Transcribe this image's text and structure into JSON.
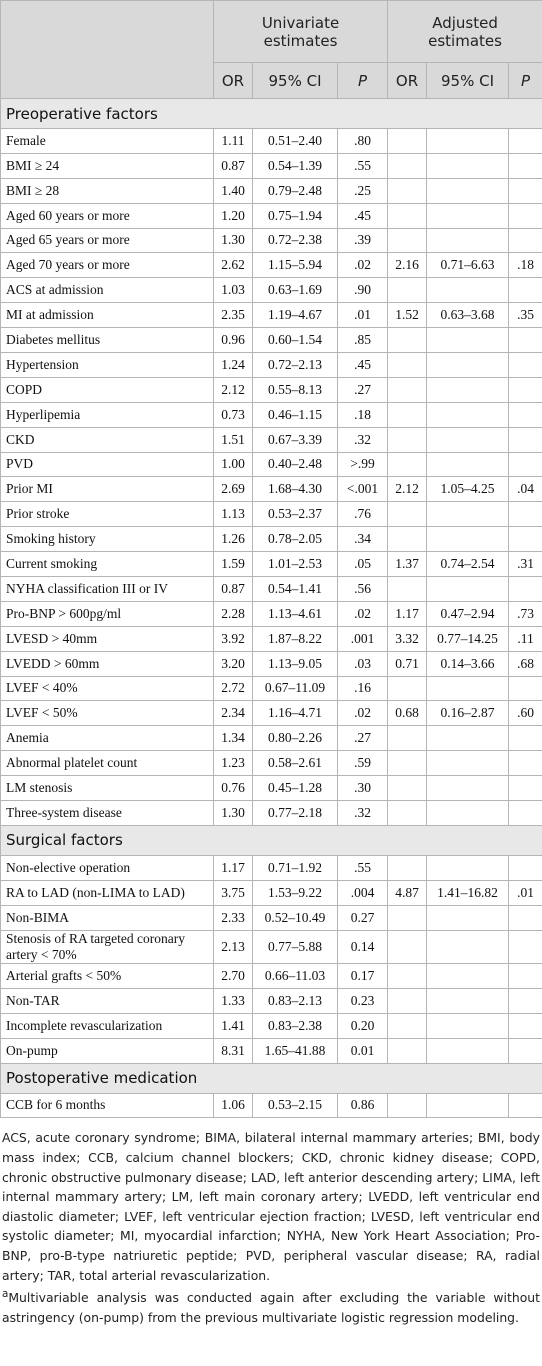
{
  "header": {
    "groups": [
      "Univariate estimates",
      "Adjusted estimates"
    ],
    "columns": [
      "OR",
      "95% CI",
      "P",
      "OR",
      "95% CI",
      "P"
    ]
  },
  "sections": [
    {
      "title": "Preoperative factors",
      "rows": [
        {
          "label": "Female",
          "univariate": [
            "1.11",
            "0.51–2.40",
            ".80"
          ]
        },
        {
          "label": "BMI ≥ 24",
          "univariate": [
            "0.87",
            "0.54–1.39",
            ".55"
          ]
        },
        {
          "label": "BMI ≥ 28",
          "univariate": [
            "1.40",
            "0.79–2.48",
            ".25"
          ]
        },
        {
          "label": "Aged 60 years or more",
          "univariate": [
            "1.20",
            "0.75–1.94",
            ".45"
          ]
        },
        {
          "label": "Aged 65 years or more",
          "univariate": [
            "1.30",
            "0.72–2.38",
            ".39"
          ]
        },
        {
          "label": "Aged 70 years or more",
          "univariate": [
            "2.62",
            "1.15–5.94",
            ".02"
          ],
          "adjusted": [
            "2.16",
            "0.71–6.63",
            ".18"
          ]
        },
        {
          "label": "ACS at admission",
          "univariate": [
            "1.03",
            "0.63–1.69",
            ".90"
          ]
        },
        {
          "label": "MI at admission",
          "univariate": [
            "2.35",
            "1.19–4.67",
            ".01"
          ],
          "adjusted": [
            "1.52",
            "0.63–3.68",
            ".35"
          ]
        },
        {
          "label": "Diabetes mellitus",
          "univariate": [
            "0.96",
            "0.60–1.54",
            ".85"
          ]
        },
        {
          "label": "Hypertension",
          "univariate": [
            "1.24",
            "0.72–2.13",
            ".45"
          ]
        },
        {
          "label": "COPD",
          "univariate": [
            "2.12",
            "0.55–8.13",
            ".27"
          ]
        },
        {
          "label": "Hyperlipemia",
          "univariate": [
            "0.73",
            "0.46–1.15",
            ".18"
          ]
        },
        {
          "label": "CKD",
          "univariate": [
            "1.51",
            "0.67–3.39",
            ".32"
          ]
        },
        {
          "label": "PVD",
          "univariate": [
            "1.00",
            "0.40–2.48",
            ">.99"
          ]
        },
        {
          "label": "Prior MI",
          "univariate": [
            "2.69",
            "1.68–4.30",
            "<.001"
          ],
          "adjusted": [
            "2.12",
            "1.05–4.25",
            ".04"
          ]
        },
        {
          "label": "Prior stroke",
          "univariate": [
            "1.13",
            "0.53–2.37",
            ".76"
          ]
        },
        {
          "label": "Smoking history",
          "univariate": [
            "1.26",
            "0.78–2.05",
            ".34"
          ]
        },
        {
          "label": "Current smoking",
          "univariate": [
            "1.59",
            "1.01–2.53",
            ".05"
          ],
          "adjusted": [
            "1.37",
            "0.74–2.54",
            ".31"
          ]
        },
        {
          "label": "NYHA classification III or IV",
          "univariate": [
            "0.87",
            "0.54–1.41",
            ".56"
          ]
        },
        {
          "label": "Pro-BNP > 600pg/ml",
          "univariate": [
            "2.28",
            "1.13–4.61",
            ".02"
          ],
          "adjusted": [
            "1.17",
            "0.47–2.94",
            ".73"
          ]
        },
        {
          "label": "LVESD > 40mm",
          "univariate": [
            "3.92",
            "1.87–8.22",
            ".001"
          ],
          "adjusted": [
            "3.32",
            "0.77–14.25",
            ".11"
          ]
        },
        {
          "label": "LVEDD > 60mm",
          "univariate": [
            "3.20",
            "1.13–9.05",
            ".03"
          ],
          "adjusted": [
            "0.71",
            "0.14–3.66",
            ".68"
          ]
        },
        {
          "label": "LVEF < 40%",
          "univariate": [
            "2.72",
            "0.67–11.09",
            ".16"
          ]
        },
        {
          "label": "LVEF < 50%",
          "univariate": [
            "2.34",
            "1.16–4.71",
            ".02"
          ],
          "adjusted": [
            "0.68",
            "0.16–2.87",
            ".60"
          ]
        },
        {
          "label": "Anemia",
          "univariate": [
            "1.34",
            "0.80–2.26",
            ".27"
          ]
        },
        {
          "label": "Abnormal platelet count",
          "univariate": [
            "1.23",
            "0.58–2.61",
            ".59"
          ]
        },
        {
          "label": "LM stenosis",
          "univariate": [
            "0.76",
            "0.45–1.28",
            ".30"
          ]
        },
        {
          "label": "Three-system disease",
          "univariate": [
            "1.30",
            "0.77–2.18",
            ".32"
          ]
        }
      ]
    },
    {
      "title": "Surgical factors",
      "rows": [
        {
          "label": "Non-elective operation",
          "univariate": [
            "1.17",
            "0.71–1.92",
            ".55"
          ]
        },
        {
          "label": "RA to LAD (non-LIMA to LAD)",
          "univariate": [
            "3.75",
            "1.53–9.22",
            ".004"
          ],
          "adjusted": [
            "4.87",
            "1.41–16.82",
            ".01"
          ]
        },
        {
          "label": "Non-BIMA",
          "univariate": [
            "2.33",
            "0.52–10.49",
            "0.27"
          ]
        },
        {
          "label": "Stenosis of RA targeted coronary artery < 70%",
          "univariate": [
            "2.13",
            "0.77–5.88",
            "0.14"
          ]
        },
        {
          "label": "Arterial grafts < 50%",
          "univariate": [
            "2.70",
            "0.66–11.03",
            "0.17"
          ]
        },
        {
          "label": "Non-TAR",
          "univariate": [
            "1.33",
            "0.83–2.13",
            "0.23"
          ]
        },
        {
          "label": "Incomplete revascularization",
          "univariate": [
            "1.41",
            "0.83–2.38",
            "0.20"
          ]
        },
        {
          "label": "On-pump",
          "univariate": [
            "8.31",
            "1.65–41.88",
            "0.01"
          ]
        }
      ]
    },
    {
      "title": "Postoperative medication",
      "rows": [
        {
          "label": "CCB for 6 months",
          "univariate": [
            "1.06",
            "0.53–2.15",
            "0.86"
          ]
        }
      ]
    }
  ],
  "footnotes": {
    "abbreviations": "ACS, acute coronary syndrome; BIMA, bilateral internal mammary arteries; BMI, body mass index; CCB, calcium channel blockers; CKD, chronic kidney disease; COPD, chronic obstructive pulmonary disease; LAD, left anterior descending artery; LIMA, left internal mammary artery; LM, left main coronary artery; LVEDD, left ventricular end diastolic diameter; LVEF, left ventricular ejection fraction; LVESD, left ventricular end systolic diameter; MI, myocardial infarction; NYHA, New York Heart Association; Pro-BNP, pro-B-type natriuretic peptide; PVD, peripheral vascular disease; RA, radial artery; TAR, total arterial revascularization.",
    "note_marker": "a",
    "note": "Multivariable analysis was conducted again after excluding the variable without astringency (on-pump) from the previous multivariate logistic regression modeling."
  }
}
